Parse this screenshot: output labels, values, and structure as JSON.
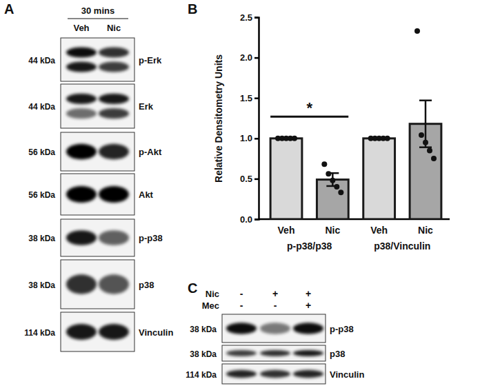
{
  "chart_data": {
    "type": "bar",
    "y_label": "Relative Densitometry Units",
    "categories": [
      "Veh",
      "Nic",
      "Veh",
      "Nic"
    ],
    "groups": [
      "p-p38/p38",
      "p38/Vinculin"
    ],
    "values": [
      1.0,
      0.49,
      1.0,
      1.18
    ],
    "errors": [
      0,
      0.08,
      0,
      0.29
    ],
    "points": [
      [
        1,
        1,
        1,
        1,
        1
      ],
      [
        0.68,
        0.56,
        0.48,
        0.4,
        0.33
      ],
      [
        1,
        1,
        1,
        1,
        1
      ],
      [
        2.33,
        1.04,
        0.95,
        0.85,
        0.75
      ]
    ],
    "colors": [
      "#d9d9d9",
      "#a6a6a6",
      "#d9d9d9",
      "#a6a6a6"
    ],
    "ylim": [
      0,
      2.5
    ],
    "yticks": [
      {
        "value": 0,
        "label": "0.0"
      },
      0.5,
      {
        "value": 1,
        "label": "1.0"
      },
      1.5,
      {
        "value": 2,
        "label": "2.0"
      },
      2.5
    ],
    "annotations": [
      {
        "text": "*",
        "y": 1.27
      }
    ]
  },
  "panel_labels": [
    "A",
    "B",
    "C"
  ],
  "blot_a": {
    "header": "30 mins",
    "lanes": [
      "Veh",
      "Nic"
    ],
    "rows": [
      {
        "size": "44 kDa",
        "label": "p-Erk",
        "bands": [
          [
            0.95,
            0.9
          ],
          [
            0.8,
            0.75
          ]
        ]
      },
      {
        "size": "44 kDa",
        "label": "Erk",
        "bands": [
          [
            0.9,
            0.55
          ],
          [
            0.9,
            0.75
          ]
        ]
      },
      {
        "size": "56 kDa",
        "label": "p-Akt",
        "bands": [
          [
            1.0
          ],
          [
            0.85
          ]
        ]
      },
      {
        "size": "56 kDa",
        "label": "Akt",
        "bands": [
          [
            1.0
          ],
          [
            1.0
          ]
        ]
      },
      {
        "size": "38 kDa",
        "label": "p-p38",
        "bands": [
          [
            0.9
          ],
          [
            0.6
          ]
        ]
      },
      {
        "size": "38 kDa",
        "label": "p38",
        "bands": [
          [
            0.8
          ],
          [
            0.65
          ]
        ]
      },
      {
        "size": "114 kDa",
        "label": "Vinculin",
        "bands": [
          [
            0.9
          ],
          [
            0.9
          ]
        ]
      }
    ]
  },
  "blot_c": {
    "conditions": [
      {
        "label": "Nic",
        "lanes": [
          "-",
          "+",
          "+"
        ]
      },
      {
        "label": "Mec",
        "lanes": [
          "-",
          "-",
          "+"
        ]
      }
    ],
    "rows": [
      {
        "size": "38 kDa",
        "label": "p-p38",
        "bands": [
          [
            0.95
          ],
          [
            0.5
          ],
          [
            0.95
          ]
        ]
      },
      {
        "size": "38 kDa",
        "label": "p38",
        "bands": [
          [
            0.75
          ],
          [
            0.8
          ],
          [
            0.9
          ]
        ]
      },
      {
        "size": "114 kDa",
        "label": "Vinculin",
        "bands": [
          [
            0.85
          ],
          [
            0.8
          ],
          [
            0.85
          ]
        ]
      }
    ]
  }
}
